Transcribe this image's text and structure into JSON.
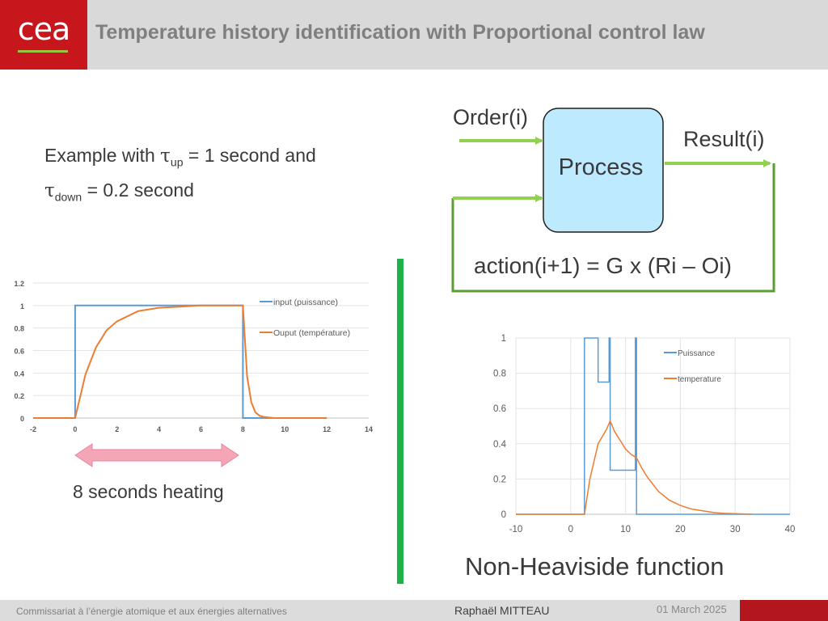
{
  "logo": {
    "text": "cea"
  },
  "slide": {
    "title": "Temperature history identification with Proportional control law"
  },
  "example": {
    "prefix": "Example with ",
    "tau": "τ",
    "up_sub": "up",
    "mid": "  = 1 second and",
    "down_sub": "down",
    "suffix": "  = 0.2 second"
  },
  "diagram": {
    "order_label": "Order(i)",
    "process_label": "Process",
    "result_label": "Result(i)",
    "action_label": "action(i+1) = G x (Ri – Oi)"
  },
  "heating_label": "8 seconds heating",
  "nonheaviside_label": "Non-Heaviside function",
  "footer": {
    "org": "Commissariat à l’énergie atomique et aux énergies alternatives",
    "author": "Raphaël MITTEAU",
    "date": "01 March 2025"
  },
  "chart_data": [
    {
      "type": "line",
      "title": "",
      "xlim": [
        -2,
        14
      ],
      "ylim": [
        0,
        1.2
      ],
      "x_ticks": [
        "-2",
        "0",
        "2",
        "4",
        "6",
        "8",
        "10",
        "12",
        "14"
      ],
      "y_ticks": [
        "0",
        "0.2",
        "0.4",
        "0.6",
        "0.8",
        "1",
        "1.2"
      ],
      "grid": true,
      "legend": "right",
      "series": [
        {
          "name": "input (puissance)",
          "color": "#5b9bd5",
          "x": [
            -2,
            0,
            0,
            8,
            8,
            12
          ],
          "y": [
            0,
            0,
            1,
            1,
            0,
            0
          ]
        },
        {
          "name": "Ouput (température)",
          "color": "#ed7d31",
          "x": [
            -2,
            0,
            0.5,
            1,
            1.5,
            2,
            3,
            4,
            5,
            6,
            7,
            8,
            8.2,
            8.4,
            8.6,
            8.8,
            9,
            9.5,
            10,
            12
          ],
          "y": [
            0,
            0,
            0.39,
            0.63,
            0.78,
            0.86,
            0.95,
            0.98,
            0.99,
            1,
            1,
            1,
            0.37,
            0.14,
            0.05,
            0.02,
            0.01,
            0,
            0,
            0
          ]
        }
      ]
    },
    {
      "type": "line",
      "title": "",
      "xlim": [
        -10,
        40
      ],
      "ylim": [
        0,
        1
      ],
      "x_ticks": [
        "-10",
        "0",
        "10",
        "20",
        "30",
        "40"
      ],
      "y_ticks": [
        "0",
        "0.2",
        "0.4",
        "0.6",
        "0.8",
        "1"
      ],
      "grid": true,
      "legend": "right",
      "series": [
        {
          "name": "Puissance",
          "color": "#5b9bd5",
          "x": [
            -10,
            2.5,
            2.5,
            5,
            5,
            7,
            7,
            7.2,
            7.2,
            11.8,
            11.8,
            12,
            12,
            40
          ],
          "y": [
            0,
            0,
            1,
            1,
            0.75,
            0.75,
            1,
            1,
            0.25,
            0.25,
            1,
            1,
            0,
            0
          ]
        },
        {
          "name": "temperature",
          "color": "#ed7d31",
          "x": [
            -10,
            2.5,
            3.5,
            5,
            6.5,
            7.2,
            8,
            9,
            10,
            11,
            12,
            13,
            14,
            16,
            18,
            20,
            22,
            24,
            26,
            28,
            30,
            33
          ],
          "y": [
            0,
            0,
            0.2,
            0.4,
            0.48,
            0.53,
            0.47,
            0.42,
            0.37,
            0.34,
            0.32,
            0.26,
            0.21,
            0.13,
            0.08,
            0.05,
            0.03,
            0.02,
            0.01,
            0.005,
            0.003,
            0
          ]
        }
      ]
    }
  ]
}
